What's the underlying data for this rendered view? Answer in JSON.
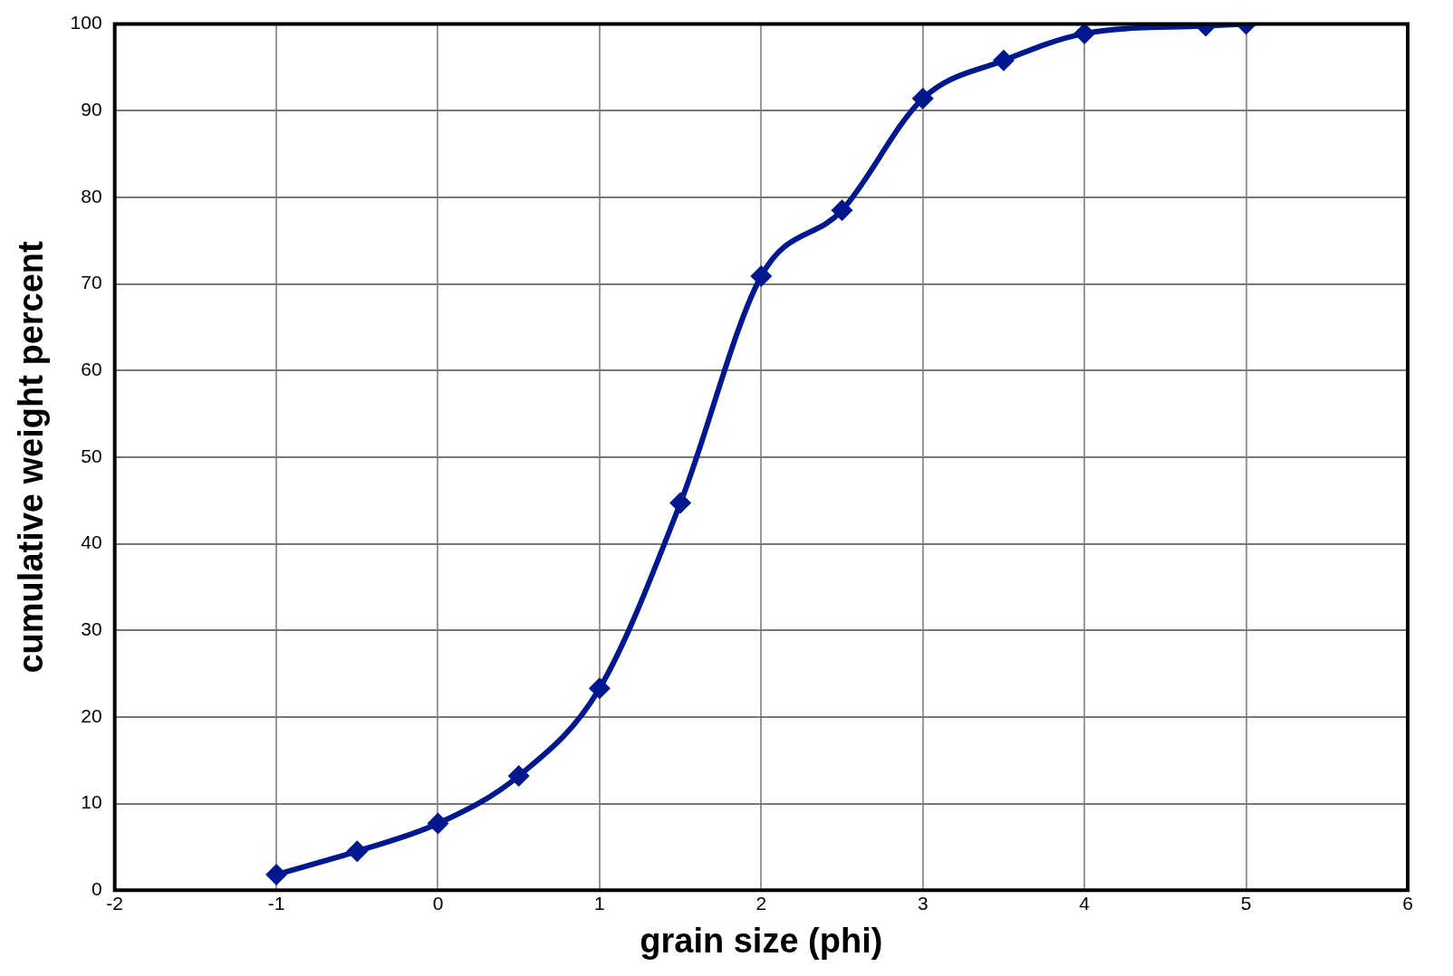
{
  "chart_data": {
    "type": "line",
    "xlabel": "grain size (phi)",
    "ylabel": "cumulative weight percent",
    "x": [
      -1,
      -0.5,
      0,
      0.5,
      1,
      1.5,
      2,
      2.5,
      3,
      3.5,
      4,
      4.75,
      5
    ],
    "series": [
      {
        "color": "#00188f",
        "values": [
          1.8,
          4.5,
          7.7,
          13.2,
          23.3,
          44.7,
          70.9,
          78.5,
          91.4,
          95.8,
          98.9,
          99.8,
          100
        ]
      }
    ],
    "xlim": [
      -2,
      6
    ],
    "xticks": [
      -2,
      -1,
      0,
      1,
      2,
      3,
      4,
      5,
      6
    ],
    "ylim": [
      0,
      100
    ],
    "yticks": [
      0,
      10,
      20,
      30,
      40,
      50,
      60,
      70,
      80,
      90,
      100
    ],
    "grid": true,
    "legend": false,
    "marker": "diamond",
    "line_style": "solid"
  }
}
